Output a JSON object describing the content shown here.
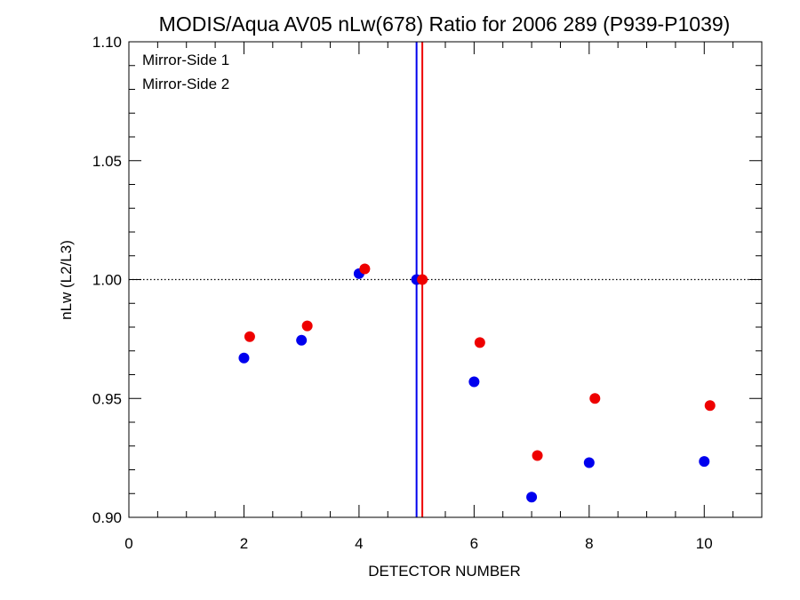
{
  "chart_data": {
    "type": "scatter",
    "title": "MODIS/Aqua AV05 nLw(678) Ratio for 2006 289 (P939-P1039)",
    "xlabel": "DETECTOR NUMBER",
    "ylabel": "nLw (L2/L3)",
    "xlim": [
      0,
      11
    ],
    "ylim": [
      0.9,
      1.1
    ],
    "x_ticks": [
      0,
      2,
      4,
      6,
      8,
      10
    ],
    "x_tick_labels": [
      "0",
      "2",
      "4",
      "6",
      "8",
      "10"
    ],
    "y_ticks": [
      0.9,
      0.95,
      1.0,
      1.05,
      1.1
    ],
    "y_tick_labels": [
      "0.90",
      "0.95",
      "1.00",
      "1.05",
      "1.10"
    ],
    "reference_line": {
      "y": 1.0,
      "style": "dotted",
      "color": "#000000"
    },
    "legend_position": "top-left",
    "series": [
      {
        "name": "Mirror-Side 1",
        "color": "#0000ee",
        "x": [
          2,
          3,
          4,
          5,
          6,
          7,
          8,
          10
        ],
        "y": [
          0.967,
          0.9745,
          1.0025,
          1.0,
          0.957,
          0.9085,
          0.923,
          0.9235
        ],
        "vline_x": 5.0
      },
      {
        "name": "Mirror-Side 2",
        "color": "#ee0000",
        "x": [
          2.1,
          3.1,
          4.1,
          5.1,
          6.1,
          7.1,
          8.1,
          10.1
        ],
        "y": [
          0.976,
          0.9805,
          1.0045,
          1.0,
          0.9735,
          0.926,
          0.95,
          0.947
        ],
        "vline_x": 5.1
      }
    ]
  }
}
